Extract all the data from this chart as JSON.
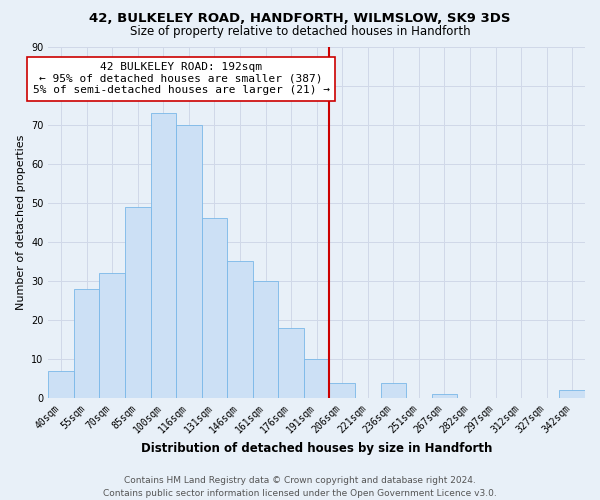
{
  "title_line1": "42, BULKELEY ROAD, HANDFORTH, WILMSLOW, SK9 3DS",
  "title_line2": "Size of property relative to detached houses in Handforth",
  "xlabel": "Distribution of detached houses by size in Handforth",
  "ylabel": "Number of detached properties",
  "bar_labels": [
    "40sqm",
    "55sqm",
    "70sqm",
    "85sqm",
    "100sqm",
    "116sqm",
    "131sqm",
    "146sqm",
    "161sqm",
    "176sqm",
    "191sqm",
    "206sqm",
    "221sqm",
    "236sqm",
    "251sqm",
    "267sqm",
    "282sqm",
    "297sqm",
    "312sqm",
    "327sqm",
    "342sqm"
  ],
  "bar_values": [
    7,
    28,
    32,
    49,
    73,
    70,
    46,
    35,
    30,
    18,
    10,
    4,
    0,
    4,
    0,
    1,
    0,
    0,
    0,
    0,
    2
  ],
  "bar_color": "#cce0f5",
  "bar_edge_color": "#7ab8e8",
  "vline_index": 10.5,
  "vline_color": "#cc0000",
  "annotation_text": "42 BULKELEY ROAD: 192sqm\n← 95% of detached houses are smaller (387)\n5% of semi-detached houses are larger (21) →",
  "annotation_box_color": "#ffffff",
  "annotation_box_edge_color": "#cc0000",
  "ylim": [
    0,
    90
  ],
  "yticks": [
    0,
    10,
    20,
    30,
    40,
    50,
    60,
    70,
    80,
    90
  ],
  "grid_color": "#d0d8e8",
  "background_color": "#e8f0f8",
  "footer_line1": "Contains HM Land Registry data © Crown copyright and database right 2024.",
  "footer_line2": "Contains public sector information licensed under the Open Government Licence v3.0.",
  "title_fontsize": 9.5,
  "subtitle_fontsize": 8.5,
  "ylabel_fontsize": 8,
  "xlabel_fontsize": 8.5,
  "tick_fontsize": 7,
  "annotation_fontsize": 8,
  "footer_fontsize": 6.5
}
